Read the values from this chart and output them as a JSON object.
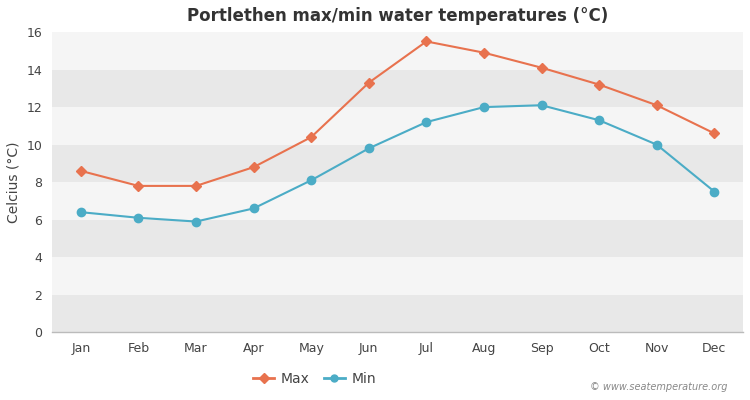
{
  "title": "Portlethen max/min water temperatures (°C)",
  "ylabel": "Celcius (°C)",
  "months": [
    "Jan",
    "Feb",
    "Mar",
    "Apr",
    "May",
    "Jun",
    "Jul",
    "Aug",
    "Sep",
    "Oct",
    "Nov",
    "Dec"
  ],
  "max_temps": [
    8.6,
    7.8,
    7.8,
    8.8,
    10.4,
    13.3,
    15.5,
    14.9,
    14.1,
    13.2,
    12.1,
    10.6
  ],
  "min_temps": [
    6.4,
    6.1,
    5.9,
    6.6,
    8.1,
    9.8,
    11.2,
    12.0,
    12.1,
    11.3,
    10.0,
    7.5
  ],
  "max_color": "#e8724e",
  "min_color": "#4bacc6",
  "outer_bg_color": "#ffffff",
  "band_light": "#e8e8e8",
  "band_white": "#f5f5f5",
  "ylim": [
    0,
    16
  ],
  "yticks": [
    0,
    2,
    4,
    6,
    8,
    10,
    12,
    14,
    16
  ],
  "watermark": "© www.seatemperature.org",
  "legend_max": "Max",
  "legend_min": "Min",
  "title_fontsize": 12,
  "label_fontsize": 10,
  "tick_fontsize": 9
}
